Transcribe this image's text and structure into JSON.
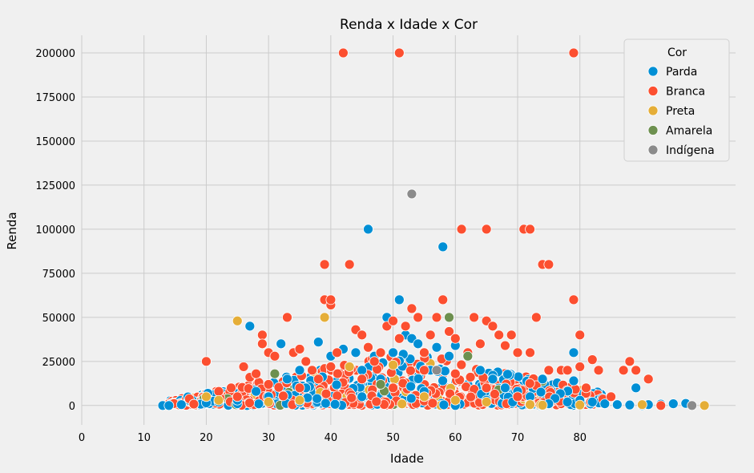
{
  "chart_data": {
    "type": "scatter",
    "title": "Renda x Idade x Cor",
    "xlabel": "Idade",
    "ylabel": "Renda",
    "xlim": [
      0,
      105
    ],
    "ylim": [
      -11000,
      210000
    ],
    "xticks": [
      0,
      10,
      20,
      30,
      40,
      50,
      60,
      70,
      80
    ],
    "yticks": [
      0,
      25000,
      50000,
      75000,
      100000,
      125000,
      150000,
      175000,
      200000
    ],
    "grid": true,
    "legend": {
      "title": "Cor",
      "placement": "top-right"
    },
    "series": [
      {
        "name": "Parda",
        "color": "#008fd5",
        "points": [
          [
            13,
            0
          ],
          [
            14,
            0
          ],
          [
            16,
            500
          ],
          [
            18,
            800
          ],
          [
            20,
            1500
          ],
          [
            22,
            2000
          ],
          [
            25,
            1000
          ],
          [
            27,
            45000
          ],
          [
            28,
            8000
          ],
          [
            30,
            5000
          ],
          [
            32,
            35000
          ],
          [
            33,
            15000
          ],
          [
            35,
            20000
          ],
          [
            36,
            10000
          ],
          [
            38,
            36000
          ],
          [
            40,
            28000
          ],
          [
            42,
            32000
          ],
          [
            44,
            30000
          ],
          [
            45,
            20000
          ],
          [
            46,
            100000
          ],
          [
            47,
            28000
          ],
          [
            48,
            15000
          ],
          [
            49,
            50000
          ],
          [
            50,
            30000
          ],
          [
            51,
            60000
          ],
          [
            52,
            40000
          ],
          [
            53,
            38000
          ],
          [
            54,
            35000
          ],
          [
            55,
            30000
          ],
          [
            56,
            20000
          ],
          [
            57,
            33000
          ],
          [
            58,
            90000
          ],
          [
            59,
            28000
          ],
          [
            60,
            34000
          ],
          [
            62,
            28000
          ],
          [
            64,
            20000
          ],
          [
            66,
            15000
          ],
          [
            68,
            10000
          ],
          [
            70,
            8000
          ],
          [
            72,
            5000
          ],
          [
            74,
            15000
          ],
          [
            76,
            4000
          ],
          [
            78,
            2000
          ],
          [
            79,
            30000
          ],
          [
            79,
            14000
          ],
          [
            80,
            3000
          ],
          [
            82,
            2000
          ],
          [
            84,
            1000
          ],
          [
            86,
            500
          ],
          [
            88,
            300
          ],
          [
            89,
            10000
          ],
          [
            90,
            0
          ],
          [
            91,
            500
          ],
          [
            93,
            800
          ],
          [
            95,
            1000
          ],
          [
            97,
            1200
          ],
          [
            60,
            0
          ],
          [
            45,
            5000
          ],
          [
            35,
            2000
          ],
          [
            25,
            3000
          ],
          [
            55,
            8000
          ],
          [
            65,
            3000
          ],
          [
            75,
            1000
          ]
        ]
      },
      {
        "name": "Branca",
        "color": "#fc4f30",
        "points": [
          [
            18,
            800
          ],
          [
            20,
            25000
          ],
          [
            22,
            8000
          ],
          [
            24,
            10000
          ],
          [
            26,
            22000
          ],
          [
            27,
            16000
          ],
          [
            28,
            18000
          ],
          [
            29,
            40000
          ],
          [
            29,
            35000
          ],
          [
            30,
            30000
          ],
          [
            31,
            28000
          ],
          [
            33,
            50000
          ],
          [
            34,
            30000
          ],
          [
            35,
            32000
          ],
          [
            36,
            25000
          ],
          [
            37,
            20000
          ],
          [
            38,
            15000
          ],
          [
            39,
            80000
          ],
          [
            39,
            60000
          ],
          [
            40,
            57000
          ],
          [
            40,
            60000
          ],
          [
            41,
            30000
          ],
          [
            42,
            200000
          ],
          [
            43,
            80000
          ],
          [
            44,
            43000
          ],
          [
            45,
            40000
          ],
          [
            46,
            33000
          ],
          [
            47,
            25000
          ],
          [
            48,
            30000
          ],
          [
            49,
            45000
          ],
          [
            50,
            48000
          ],
          [
            51,
            200000
          ],
          [
            51,
            38000
          ],
          [
            52,
            45000
          ],
          [
            53,
            55000
          ],
          [
            54,
            50000
          ],
          [
            55,
            30000
          ],
          [
            56,
            40000
          ],
          [
            57,
            50000
          ],
          [
            58,
            60000
          ],
          [
            59,
            42000
          ],
          [
            60,
            38000
          ],
          [
            61,
            100000
          ],
          [
            62,
            30000
          ],
          [
            63,
            50000
          ],
          [
            64,
            35000
          ],
          [
            65,
            100000
          ],
          [
            65,
            48000
          ],
          [
            66,
            45000
          ],
          [
            67,
            40000
          ],
          [
            68,
            34000
          ],
          [
            69,
            40000
          ],
          [
            70,
            30000
          ],
          [
            71,
            100000
          ],
          [
            72,
            100000
          ],
          [
            72,
            30000
          ],
          [
            73,
            50000
          ],
          [
            74,
            80000
          ],
          [
            75,
            80000
          ],
          [
            75,
            20000
          ],
          [
            77,
            20000
          ],
          [
            78,
            20000
          ],
          [
            79,
            200000
          ],
          [
            79,
            60000
          ],
          [
            80,
            40000
          ],
          [
            80,
            22000
          ],
          [
            81,
            10000
          ],
          [
            82,
            26000
          ],
          [
            83,
            20000
          ],
          [
            85,
            5000
          ],
          [
            87,
            20000
          ],
          [
            88,
            25000
          ],
          [
            89,
            20000
          ],
          [
            91,
            15000
          ],
          [
            93,
            0
          ],
          [
            25,
            5000
          ],
          [
            35,
            10000
          ],
          [
            45,
            15000
          ],
          [
            55,
            20000
          ],
          [
            65,
            10000
          ],
          [
            70,
            5000
          ],
          [
            50,
            10000
          ],
          [
            60,
            18000
          ],
          [
            40,
            22000
          ],
          [
            30,
            12000
          ]
        ]
      },
      {
        "name": "Preta",
        "color": "#e5ae38",
        "points": [
          [
            20,
            5000
          ],
          [
            22,
            3000
          ],
          [
            25,
            48000
          ],
          [
            30,
            2000
          ],
          [
            35,
            3000
          ],
          [
            39,
            50000
          ],
          [
            43,
            22000
          ],
          [
            50,
            23000
          ],
          [
            55,
            5000
          ],
          [
            60,
            3000
          ],
          [
            65,
            2000
          ],
          [
            72,
            500
          ],
          [
            74,
            200
          ],
          [
            80,
            300
          ],
          [
            90,
            500
          ],
          [
            100,
            0
          ]
        ]
      },
      {
        "name": "Amarela",
        "color": "#6d904f",
        "points": [
          [
            31,
            18000
          ],
          [
            59,
            50000
          ],
          [
            62,
            28000
          ],
          [
            48,
            12000
          ]
        ]
      },
      {
        "name": "Indígena",
        "color": "#8b8b8b",
        "points": [
          [
            53,
            120000
          ],
          [
            98,
            0
          ],
          [
            57,
            20000
          ]
        ]
      }
    ]
  }
}
